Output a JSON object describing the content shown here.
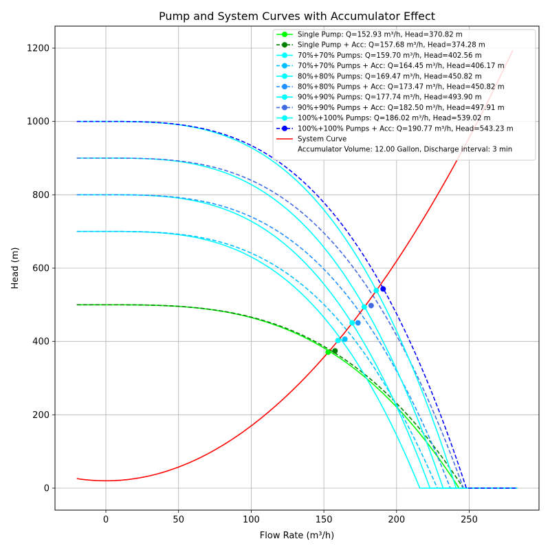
{
  "chart_data": {
    "type": "line",
    "title": "Pump and System Curves with Accumulator Effect",
    "xlabel": "Flow Rate (m³/h)",
    "ylabel": "Head (m)",
    "xlim": [
      -35,
      298
    ],
    "ylim": [
      -60,
      1260
    ],
    "xticks": [
      0,
      50,
      100,
      150,
      200,
      250
    ],
    "yticks": [
      0,
      200,
      400,
      600,
      800,
      1000,
      1200
    ],
    "grid": true,
    "legend_position": "upper right",
    "legend_note": "Accumulator Volume: 12.00 Gallon, Discharge interval: 3 min",
    "x_start": -20,
    "x_end": 283,
    "system_curve": {
      "name": "System Curve",
      "color": "#ff0000",
      "static_head": 20,
      "coefficient": 0.01498,
      "x_range": [
        -20,
        280
      ]
    },
    "series": [
      {
        "name": "Single Pump: Q=152.93 m³/h, Head=370.82 m",
        "color": "#00ff00",
        "dashed": false,
        "shutoff_head": 500,
        "max_flow": 243,
        "exponent": 3,
        "operating_point": [
          152.93,
          370.82
        ]
      },
      {
        "name": "Single Pump + Acc: Q=157.68 m³/h, Head=374.28 m",
        "color": "#008000",
        "dashed": true,
        "shutoff_head": 500,
        "max_flow": 246,
        "exponent": 3,
        "operating_point": [
          157.68,
          374.28
        ]
      },
      {
        "name": "70%+70% Pumps: Q=159.70 m³/h, Head=402.56 m",
        "color": "#00ffff",
        "dashed": false,
        "shutoff_head": 700,
        "max_flow": 216,
        "exponent": 3,
        "operating_point": [
          159.7,
          402.56
        ]
      },
      {
        "name": "70%+70% Pumps + Acc: Q=164.45 m³/h, Head=406.17 m",
        "color": "#00bfff",
        "dashed": true,
        "shutoff_head": 700,
        "max_flow": 228,
        "exponent": 3,
        "operating_point": [
          164.45,
          406.17
        ]
      },
      {
        "name": "80%+80% Pumps: Q=169.47 m³/h, Head=450.82 m",
        "color": "#00ffff",
        "dashed": false,
        "shutoff_head": 800,
        "max_flow": 223,
        "exponent": 3,
        "operating_point": [
          169.47,
          450.82
        ]
      },
      {
        "name": "80%+80% Pumps + Acc: Q=173.47 m³/h, Head=450.82 m",
        "color": "#1e90ff",
        "dashed": true,
        "shutoff_head": 800,
        "max_flow": 237,
        "exponent": 3,
        "operating_point": [
          173.47,
          450.82
        ]
      },
      {
        "name": "90%+90% Pumps: Q=177.74 m³/h, Head=493.90 m",
        "color": "#00ffff",
        "dashed": false,
        "shutoff_head": 900,
        "max_flow": 232,
        "exponent": 3,
        "operating_point": [
          177.74,
          493.9
        ]
      },
      {
        "name": "90%+90% Pumps + Acc: Q=182.50 m³/h, Head=497.91 m",
        "color": "#4169e1",
        "dashed": true,
        "shutoff_head": 900,
        "max_flow": 246,
        "exponent": 3,
        "operating_point": [
          182.5,
          497.91
        ]
      },
      {
        "name": "100%+100% Pumps: Q=186.02 m³/h, Head=539.02 m",
        "color": "#00ffff",
        "dashed": false,
        "shutoff_head": 1000,
        "max_flow": 241,
        "exponent": 3,
        "operating_point": [
          186.02,
          539.02
        ]
      },
      {
        "name": "100%+100% Pumps + Acc: Q=190.77 m³/h, Head=543.23 m",
        "color": "#0000ff",
        "dashed": true,
        "shutoff_head": 1000,
        "max_flow": 248,
        "exponent": 3,
        "operating_point": [
          190.77,
          543.23
        ]
      }
    ]
  }
}
